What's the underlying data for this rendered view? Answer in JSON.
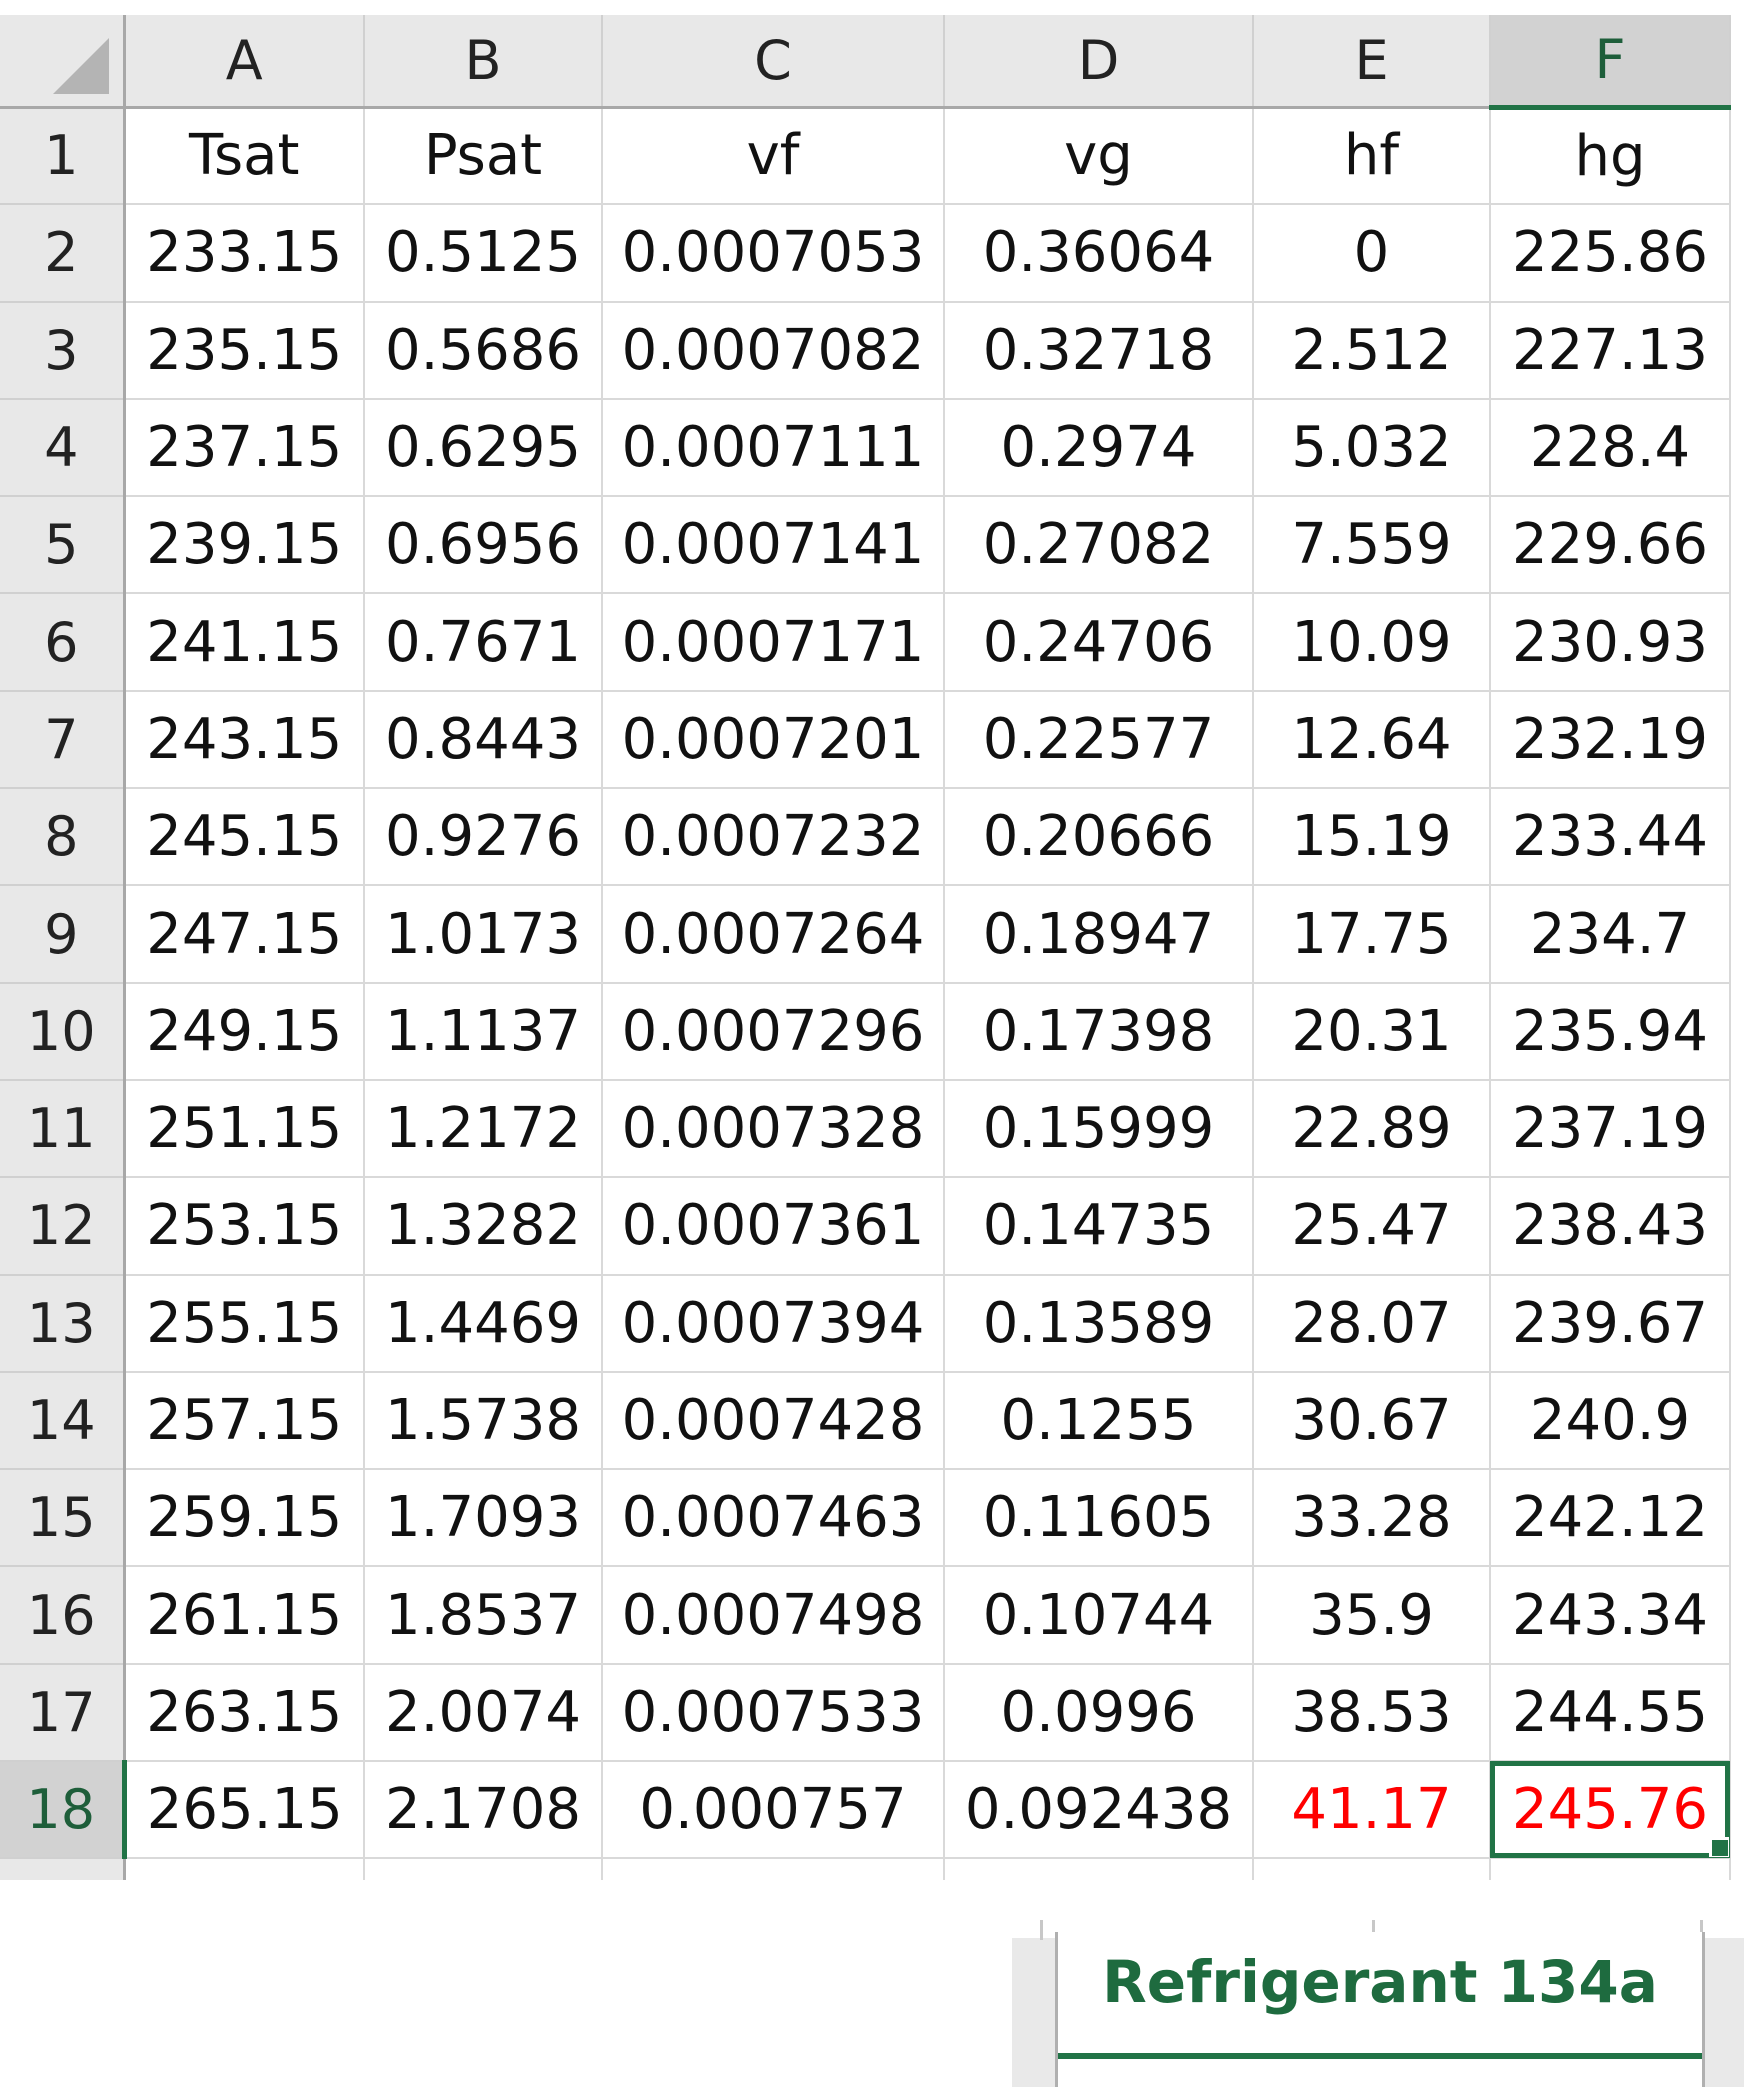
{
  "columns": [
    "A",
    "B",
    "C",
    "D",
    "E",
    "F"
  ],
  "selected_column": "F",
  "selected_row": "18",
  "active_cell": "F18",
  "rows": [
    {
      "n": "1",
      "cells": [
        "Tsat",
        "Psat",
        "vf",
        "vg",
        "hf",
        "hg"
      ]
    },
    {
      "n": "2",
      "cells": [
        "233.15",
        "0.5125",
        "0.0007053",
        "0.36064",
        "0",
        "225.86"
      ]
    },
    {
      "n": "3",
      "cells": [
        "235.15",
        "0.5686",
        "0.0007082",
        "0.32718",
        "2.512",
        "227.13"
      ]
    },
    {
      "n": "4",
      "cells": [
        "237.15",
        "0.6295",
        "0.0007111",
        "0.2974",
        "5.032",
        "228.4"
      ]
    },
    {
      "n": "5",
      "cells": [
        "239.15",
        "0.6956",
        "0.0007141",
        "0.27082",
        "7.559",
        "229.66"
      ]
    },
    {
      "n": "6",
      "cells": [
        "241.15",
        "0.7671",
        "0.0007171",
        "0.24706",
        "10.09",
        "230.93"
      ]
    },
    {
      "n": "7",
      "cells": [
        "243.15",
        "0.8443",
        "0.0007201",
        "0.22577",
        "12.64",
        "232.19"
      ]
    },
    {
      "n": "8",
      "cells": [
        "245.15",
        "0.9276",
        "0.0007232",
        "0.20666",
        "15.19",
        "233.44"
      ]
    },
    {
      "n": "9",
      "cells": [
        "247.15",
        "1.0173",
        "0.0007264",
        "0.18947",
        "17.75",
        "234.7"
      ]
    },
    {
      "n": "10",
      "cells": [
        "249.15",
        "1.1137",
        "0.0007296",
        "0.17398",
        "20.31",
        "235.94"
      ]
    },
    {
      "n": "11",
      "cells": [
        "251.15",
        "1.2172",
        "0.0007328",
        "0.15999",
        "22.89",
        "237.19"
      ]
    },
    {
      "n": "12",
      "cells": [
        "253.15",
        "1.3282",
        "0.0007361",
        "0.14735",
        "25.47",
        "238.43"
      ]
    },
    {
      "n": "13",
      "cells": [
        "255.15",
        "1.4469",
        "0.0007394",
        "0.13589",
        "28.07",
        "239.67"
      ]
    },
    {
      "n": "14",
      "cells": [
        "257.15",
        "1.5738",
        "0.0007428",
        "0.1255",
        "30.67",
        "240.9"
      ]
    },
    {
      "n": "15",
      "cells": [
        "259.15",
        "1.7093",
        "0.0007463",
        "0.11605",
        "33.28",
        "242.12"
      ]
    },
    {
      "n": "16",
      "cells": [
        "261.15",
        "1.8537",
        "0.0007498",
        "0.10744",
        "35.9",
        "243.34"
      ]
    },
    {
      "n": "17",
      "cells": [
        "263.15",
        "2.0074",
        "0.0007533",
        "0.0996",
        "38.53",
        "244.55"
      ]
    },
    {
      "n": "18",
      "cells": [
        "265.15",
        "2.1708",
        "0.000757",
        "0.092438",
        "41.17",
        "245.76"
      ],
      "red_cells": [
        4,
        5
      ]
    }
  ],
  "colors": {
    "accent": "#217346",
    "red_text": "#ff0000"
  },
  "corner_icon": "select-all-triangle-icon",
  "sheet_tab": {
    "label": "Refrigerant 134a"
  }
}
